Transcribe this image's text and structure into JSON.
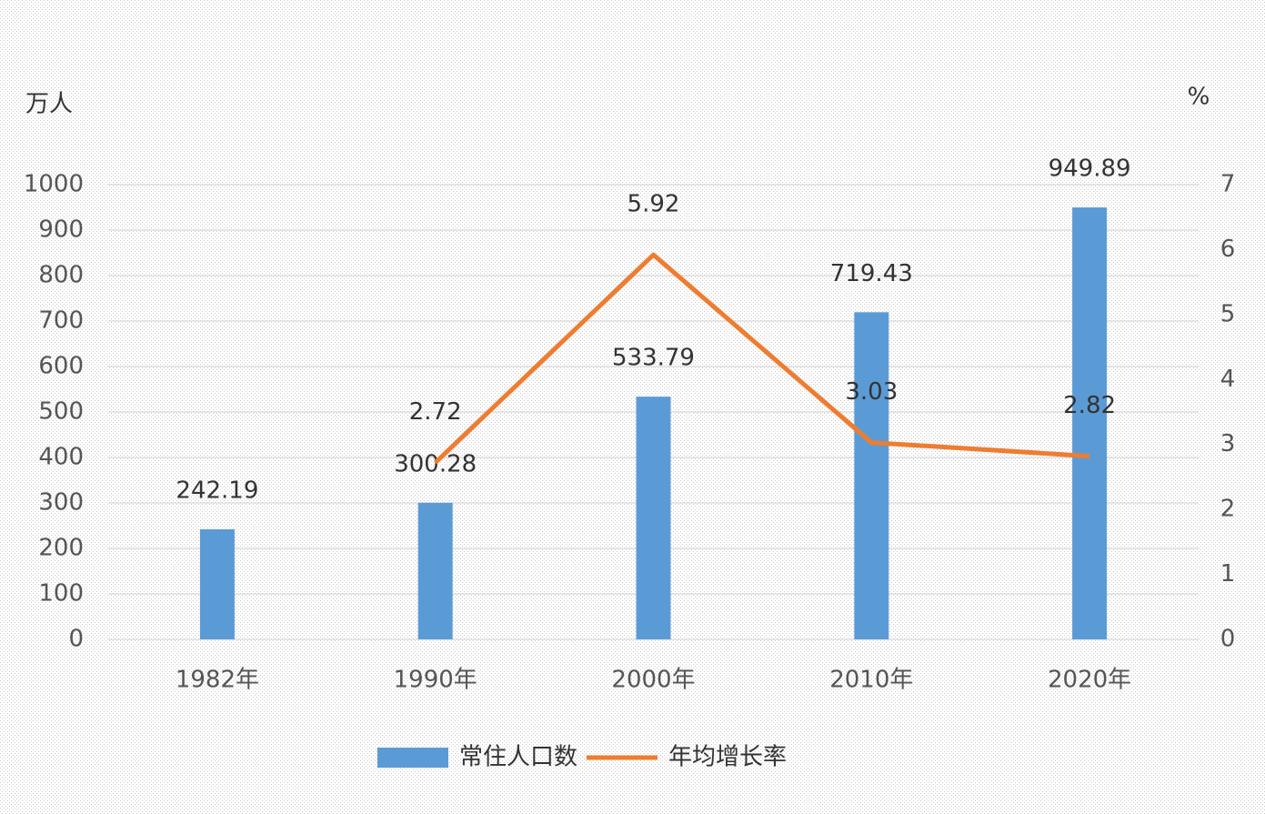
{
  "chart_data": {
    "type": "bar-line",
    "y_label": "万人",
    "y2_label": "%",
    "categories": [
      "1982年",
      "1990年",
      "2000年",
      "2010年",
      "2020年"
    ],
    "series": [
      {
        "name": "常住人口数",
        "type": "bar",
        "color": "#5b9bd5",
        "values": [
          242.19,
          300.28,
          533.79,
          719.43,
          949.89
        ]
      },
      {
        "name": "年均增长率",
        "type": "line",
        "axis": "y2",
        "color": "#ed7d31",
        "values": [
          null,
          2.72,
          5.92,
          3.03,
          2.82
        ]
      }
    ],
    "ylim": [
      0,
      1000
    ],
    "yticks": [
      0,
      100,
      200,
      300,
      400,
      500,
      600,
      700,
      800,
      900,
      1000
    ],
    "y2lim": [
      0,
      7
    ],
    "y2ticks": [
      0,
      1,
      2,
      3,
      4,
      5,
      6,
      7
    ],
    "grid": true,
    "legend": "bottom"
  }
}
